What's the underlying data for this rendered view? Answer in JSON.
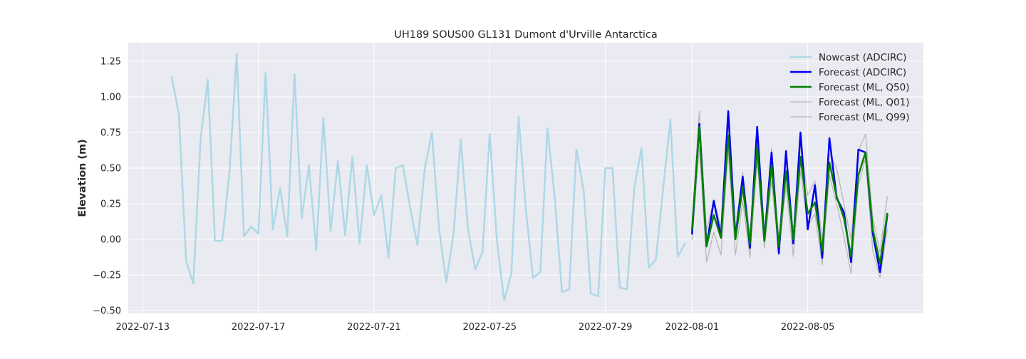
{
  "chart_data": {
    "type": "line",
    "title": "UH189 SOUS00 GL131 Dumont d'Urville Antarctica",
    "xlabel": "",
    "ylabel": "Elevation (m)",
    "x_axis_type": "date",
    "xlim": [
      "2022-07-12T12:00",
      "2022-08-09T00:00"
    ],
    "ylim": [
      -0.52,
      1.38
    ],
    "x_ticks": [
      "2022-07-13",
      "2022-07-17",
      "2022-07-21",
      "2022-07-25",
      "2022-07-29",
      "2022-08-01",
      "2022-08-05"
    ],
    "y_ticks": [
      "1.25",
      "1.00",
      "0.75",
      "0.50",
      "0.25",
      "0.00",
      "−0.25",
      "−0.50"
    ],
    "y_tick_values": [
      1.25,
      1.0,
      0.75,
      0.5,
      0.25,
      0.0,
      -0.25,
      -0.5
    ],
    "grid": true,
    "legend_position": "top-right",
    "series": [
      {
        "name": "Nowcast (ADCIRC)",
        "color": "#add8e6",
        "width": 2.5,
        "x": [
          "2022-07-14T00:00",
          "2022-07-14T06:00",
          "2022-07-14T12:00",
          "2022-07-14T18:00",
          "2022-07-15T00:00",
          "2022-07-15T06:00",
          "2022-07-15T12:00",
          "2022-07-15T18:00",
          "2022-07-16T00:00",
          "2022-07-16T06:00",
          "2022-07-16T12:00",
          "2022-07-16T18:00",
          "2022-07-17T00:00",
          "2022-07-17T06:00",
          "2022-07-17T12:00",
          "2022-07-17T18:00",
          "2022-07-18T00:00",
          "2022-07-18T06:00",
          "2022-07-18T12:00",
          "2022-07-18T18:00",
          "2022-07-19T00:00",
          "2022-07-19T06:00",
          "2022-07-19T12:00",
          "2022-07-19T18:00",
          "2022-07-20T00:00",
          "2022-07-20T06:00",
          "2022-07-20T12:00",
          "2022-07-20T18:00",
          "2022-07-21T00:00",
          "2022-07-21T06:00",
          "2022-07-21T12:00",
          "2022-07-21T18:00",
          "2022-07-22T00:00",
          "2022-07-22T06:00",
          "2022-07-22T12:00",
          "2022-07-22T18:00",
          "2022-07-23T00:00",
          "2022-07-23T06:00",
          "2022-07-23T12:00",
          "2022-07-23T18:00",
          "2022-07-24T00:00",
          "2022-07-24T06:00",
          "2022-07-24T12:00",
          "2022-07-24T18:00",
          "2022-07-25T00:00",
          "2022-07-25T06:00",
          "2022-07-25T12:00",
          "2022-07-25T18:00",
          "2022-07-26T00:00",
          "2022-07-26T06:00",
          "2022-07-26T12:00",
          "2022-07-26T18:00",
          "2022-07-27T00:00",
          "2022-07-27T06:00",
          "2022-07-27T12:00",
          "2022-07-27T18:00",
          "2022-07-28T00:00",
          "2022-07-28T06:00",
          "2022-07-28T12:00",
          "2022-07-28T18:00",
          "2022-07-29T00:00",
          "2022-07-29T06:00",
          "2022-07-29T12:00",
          "2022-07-29T18:00",
          "2022-07-30T00:00",
          "2022-07-30T06:00",
          "2022-07-30T12:00",
          "2022-07-30T18:00",
          "2022-07-31T00:00",
          "2022-07-31T06:00",
          "2022-07-31T12:00",
          "2022-07-31T18:00"
        ],
        "y": [
          1.14,
          0.88,
          -0.15,
          -0.31,
          0.7,
          1.12,
          -0.01,
          -0.01,
          0.47,
          1.3,
          0.02,
          0.09,
          0.04,
          1.17,
          0.07,
          0.36,
          0.02,
          1.16,
          0.15,
          0.52,
          -0.08,
          0.85,
          0.06,
          0.55,
          0.03,
          0.58,
          -0.03,
          0.52,
          0.17,
          0.31,
          -0.13,
          0.5,
          0.52,
          0.22,
          -0.04,
          0.49,
          0.75,
          0.07,
          -0.3,
          0.04,
          0.7,
          0.07,
          -0.21,
          -0.09,
          0.74,
          -0.01,
          -0.43,
          -0.24,
          0.86,
          0.21,
          -0.27,
          -0.23,
          0.78,
          0.29,
          -0.37,
          -0.35,
          0.63,
          0.34,
          -0.38,
          -0.4,
          0.5,
          0.5,
          -0.34,
          -0.35,
          0.36,
          0.64,
          -0.2,
          -0.14,
          0.36,
          0.84,
          -0.12,
          -0.03
        ]
      },
      {
        "name": "Forecast (ADCIRC)",
        "color": "#0000ee",
        "width": 2.5,
        "x": [
          "2022-08-01T00:00",
          "2022-08-01T06:00",
          "2022-08-01T12:00",
          "2022-08-01T18:00",
          "2022-08-02T00:00",
          "2022-08-02T06:00",
          "2022-08-02T12:00",
          "2022-08-02T18:00",
          "2022-08-03T00:00",
          "2022-08-03T06:00",
          "2022-08-03T12:00",
          "2022-08-03T18:00",
          "2022-08-04T00:00",
          "2022-08-04T06:00",
          "2022-08-04T12:00",
          "2022-08-04T18:00",
          "2022-08-05T00:00",
          "2022-08-05T06:00",
          "2022-08-05T12:00",
          "2022-08-05T18:00",
          "2022-08-06T00:00",
          "2022-08-06T06:00",
          "2022-08-06T12:00",
          "2022-08-06T18:00",
          "2022-08-07T00:00",
          "2022-08-07T06:00",
          "2022-08-07T12:00",
          "2022-08-07T18:00"
        ],
        "y": [
          0.04,
          0.81,
          -0.05,
          0.27,
          0.02,
          0.9,
          0.01,
          0.44,
          -0.06,
          0.79,
          -0.01,
          0.61,
          -0.1,
          0.62,
          -0.03,
          0.75,
          0.07,
          0.38,
          -0.13,
          0.71,
          0.29,
          0.19,
          -0.16,
          0.63,
          0.61,
          0.04,
          -0.23,
          0.17
        ]
      },
      {
        "name": "Forecast (ML, Q50)",
        "color": "#008000",
        "width": 2.5,
        "x": [
          "2022-08-01T00:00",
          "2022-08-01T06:00",
          "2022-08-01T12:00",
          "2022-08-01T18:00",
          "2022-08-02T00:00",
          "2022-08-02T06:00",
          "2022-08-02T12:00",
          "2022-08-02T18:00",
          "2022-08-03T00:00",
          "2022-08-03T06:00",
          "2022-08-03T12:00",
          "2022-08-03T18:00",
          "2022-08-04T00:00",
          "2022-08-04T06:00",
          "2022-08-04T12:00",
          "2022-08-04T18:00",
          "2022-08-05T00:00",
          "2022-08-05T06:00",
          "2022-08-05T12:00",
          "2022-08-05T18:00",
          "2022-08-06T00:00",
          "2022-08-06T06:00",
          "2022-08-06T12:00",
          "2022-08-06T18:00",
          "2022-08-07T00:00",
          "2022-08-07T06:00",
          "2022-08-07T12:00",
          "2022-08-07T18:00"
        ],
        "y": [
          0.07,
          0.79,
          -0.05,
          0.17,
          0.01,
          0.73,
          0.0,
          0.37,
          -0.03,
          0.65,
          -0.01,
          0.52,
          -0.05,
          0.48,
          0.0,
          0.58,
          0.18,
          0.26,
          -0.08,
          0.54,
          0.3,
          0.15,
          -0.12,
          0.45,
          0.61,
          0.07,
          -0.17,
          0.18
        ]
      },
      {
        "name": "Forecast (ML, Q01)",
        "color": "#b8b8b8",
        "width": 1.3,
        "x": [
          "2022-08-01T00:00",
          "2022-08-01T06:00",
          "2022-08-01T12:00",
          "2022-08-01T18:00",
          "2022-08-02T00:00",
          "2022-08-02T06:00",
          "2022-08-02T12:00",
          "2022-08-02T18:00",
          "2022-08-03T00:00",
          "2022-08-03T06:00",
          "2022-08-03T12:00",
          "2022-08-03T18:00",
          "2022-08-04T00:00",
          "2022-08-04T06:00",
          "2022-08-04T12:00",
          "2022-08-04T18:00",
          "2022-08-05T00:00",
          "2022-08-05T06:00",
          "2022-08-05T12:00",
          "2022-08-05T18:00",
          "2022-08-06T00:00",
          "2022-08-06T06:00",
          "2022-08-06T12:00",
          "2022-08-06T18:00",
          "2022-08-07T00:00",
          "2022-08-07T06:00",
          "2022-08-07T12:00",
          "2022-08-07T18:00"
        ],
        "y": [
          0.0,
          0.65,
          -0.16,
          0.05,
          -0.11,
          0.62,
          -0.11,
          0.27,
          -0.13,
          0.55,
          -0.06,
          0.41,
          -0.1,
          0.38,
          -0.12,
          0.48,
          0.09,
          0.18,
          -0.18,
          0.45,
          0.25,
          0.02,
          -0.24,
          0.38,
          0.57,
          -0.08,
          -0.27,
          0.07
        ]
      },
      {
        "name": "Forecast (ML, Q99)",
        "color": "#b8b8b8",
        "width": 1.3,
        "x": [
          "2022-08-01T00:00",
          "2022-08-01T06:00",
          "2022-08-01T12:00",
          "2022-08-01T18:00",
          "2022-08-02T00:00",
          "2022-08-02T06:00",
          "2022-08-02T12:00",
          "2022-08-02T18:00",
          "2022-08-03T00:00",
          "2022-08-03T06:00",
          "2022-08-03T12:00",
          "2022-08-03T18:00",
          "2022-08-04T00:00",
          "2022-08-04T06:00",
          "2022-08-04T12:00",
          "2022-08-04T18:00",
          "2022-08-05T00:00",
          "2022-08-05T06:00",
          "2022-08-05T12:00",
          "2022-08-05T18:00",
          "2022-08-06T00:00",
          "2022-08-06T06:00",
          "2022-08-06T12:00",
          "2022-08-06T18:00",
          "2022-08-07T00:00",
          "2022-08-07T06:00",
          "2022-08-07T12:00",
          "2022-08-07T18:00"
        ],
        "y": [
          0.12,
          0.9,
          0.06,
          0.28,
          0.08,
          0.82,
          0.07,
          0.47,
          0.03,
          0.72,
          0.05,
          0.64,
          0.0,
          0.58,
          0.05,
          0.66,
          0.31,
          0.41,
          0.0,
          0.6,
          0.5,
          0.25,
          0.0,
          0.62,
          0.74,
          0.15,
          -0.09,
          0.3
        ]
      }
    ]
  }
}
